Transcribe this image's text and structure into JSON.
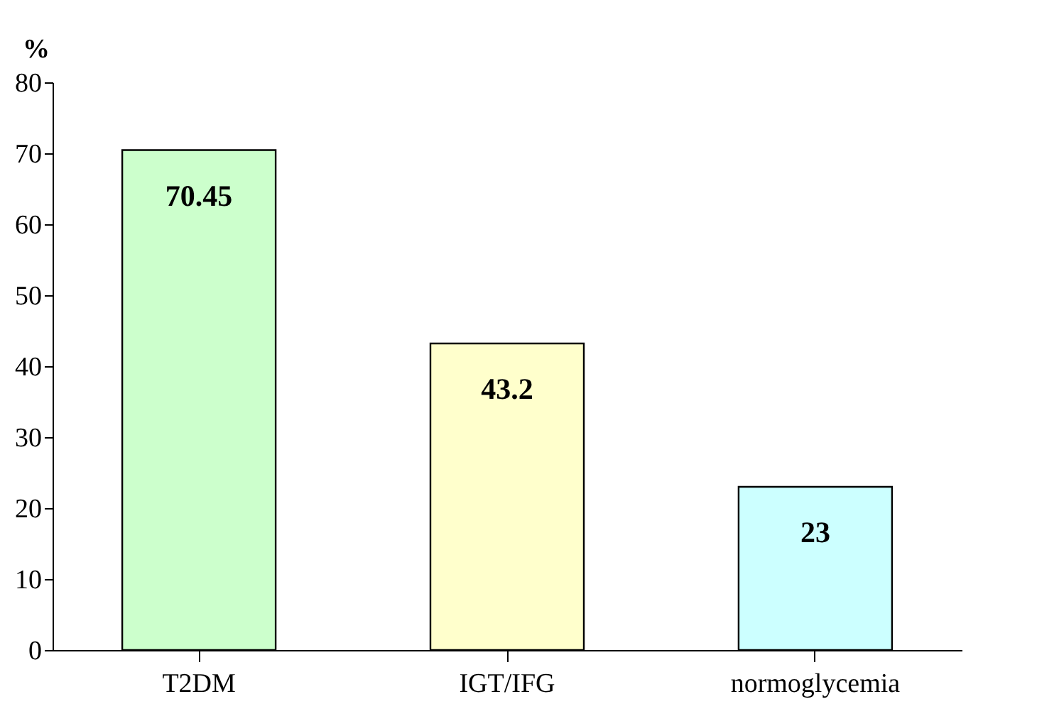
{
  "chart_data": {
    "type": "bar",
    "ylabel": "%",
    "categories": [
      "T2DM",
      "IGT/IFG",
      "normoglycemia"
    ],
    "values": [
      70.45,
      43.2,
      23
    ],
    "colors": [
      "#ccffcc",
      "#ffffcc",
      "#ccffff"
    ],
    "ylim": [
      0,
      80
    ],
    "yticks": [
      0,
      10,
      20,
      30,
      40,
      50,
      60,
      70,
      80
    ],
    "grid": false,
    "data_labels": true
  }
}
